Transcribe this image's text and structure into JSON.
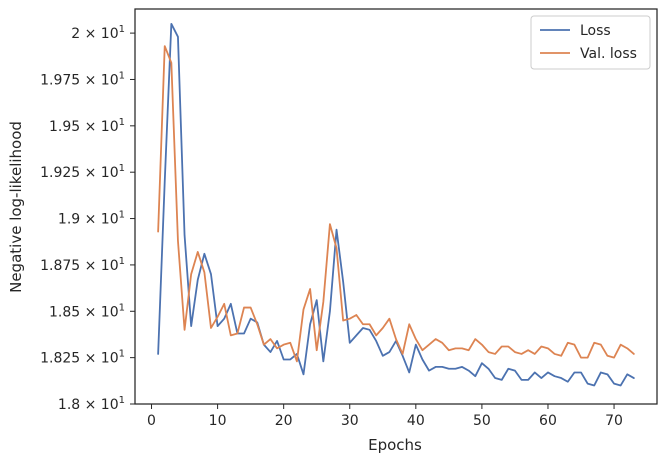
{
  "chart_data": {
    "type": "line",
    "xlabel": "Epochs",
    "ylabel": "Negative log-likelihood",
    "xlim": [
      -2.5,
      76.5
    ],
    "ylim": [
      18.0,
      20.13
    ],
    "xticks": [
      0,
      10,
      20,
      30,
      40,
      50,
      60,
      70
    ],
    "yticks": [
      {
        "value": 18.0,
        "mant": "1.8",
        "exp": "1"
      },
      {
        "value": 18.25,
        "mant": "1.825",
        "exp": "1"
      },
      {
        "value": 18.5,
        "mant": "1.85",
        "exp": "1"
      },
      {
        "value": 18.75,
        "mant": "1.875",
        "exp": "1"
      },
      {
        "value": 19.0,
        "mant": "1.9",
        "exp": "1"
      },
      {
        "value": 19.25,
        "mant": "1.925",
        "exp": "1"
      },
      {
        "value": 19.5,
        "mant": "1.95",
        "exp": "1"
      },
      {
        "value": 19.75,
        "mant": "1.975",
        "exp": "1"
      },
      {
        "value": 20.0,
        "mant": "2",
        "exp": "1"
      }
    ],
    "tick_base": "10",
    "grid": false,
    "legend_position": "top-right",
    "x": [
      1,
      2,
      3,
      4,
      5,
      6,
      7,
      8,
      9,
      10,
      11,
      12,
      13,
      14,
      15,
      16,
      17,
      18,
      19,
      20,
      21,
      22,
      23,
      24,
      25,
      26,
      27,
      28,
      29,
      30,
      31,
      32,
      33,
      34,
      35,
      36,
      37,
      38,
      39,
      40,
      41,
      42,
      43,
      44,
      45,
      46,
      47,
      48,
      49,
      50,
      51,
      52,
      53,
      54,
      55,
      56,
      57,
      58,
      59,
      60,
      61,
      62,
      63,
      64,
      65,
      66,
      67,
      68,
      69,
      70,
      71,
      72,
      73
    ],
    "series": [
      {
        "name": "Loss",
        "color": "#4c72b0",
        "values": [
          18.27,
          19.2,
          20.05,
          19.98,
          18.91,
          18.42,
          18.67,
          18.81,
          18.7,
          18.42,
          18.46,
          18.54,
          18.38,
          18.38,
          18.46,
          18.44,
          18.32,
          18.28,
          18.34,
          18.24,
          18.24,
          18.27,
          18.16,
          18.43,
          18.56,
          18.23,
          18.5,
          18.94,
          18.66,
          18.33,
          18.37,
          18.41,
          18.4,
          18.34,
          18.26,
          18.28,
          18.34,
          18.26,
          18.17,
          18.32,
          18.24,
          18.18,
          18.2,
          18.2,
          18.19,
          18.19,
          18.2,
          18.18,
          18.15,
          18.22,
          18.19,
          18.14,
          18.13,
          18.19,
          18.18,
          18.13,
          18.13,
          18.17,
          18.14,
          18.17,
          18.15,
          18.14,
          18.12,
          18.17,
          18.17,
          18.11,
          18.1,
          18.17,
          18.16,
          18.11,
          18.1,
          18.16,
          18.14
        ]
      },
      {
        "name": "Val. loss",
        "color": "#dd8452",
        "values": [
          18.93,
          19.93,
          19.84,
          18.88,
          18.4,
          18.7,
          18.82,
          18.71,
          18.41,
          18.47,
          18.54,
          18.37,
          18.38,
          18.52,
          18.52,
          18.43,
          18.32,
          18.35,
          18.3,
          18.32,
          18.33,
          18.23,
          18.51,
          18.62,
          18.29,
          18.55,
          18.97,
          18.84,
          18.45,
          18.46,
          18.48,
          18.43,
          18.43,
          18.37,
          18.41,
          18.46,
          18.35,
          18.27,
          18.43,
          18.35,
          18.29,
          18.32,
          18.35,
          18.33,
          18.29,
          18.3,
          18.3,
          18.29,
          18.35,
          18.32,
          18.28,
          18.27,
          18.31,
          18.31,
          18.28,
          18.27,
          18.29,
          18.27,
          18.31,
          18.3,
          18.27,
          18.26,
          18.33,
          18.32,
          18.25,
          18.25,
          18.33,
          18.32,
          18.26,
          18.25,
          18.32,
          18.3,
          18.27
        ]
      }
    ]
  }
}
